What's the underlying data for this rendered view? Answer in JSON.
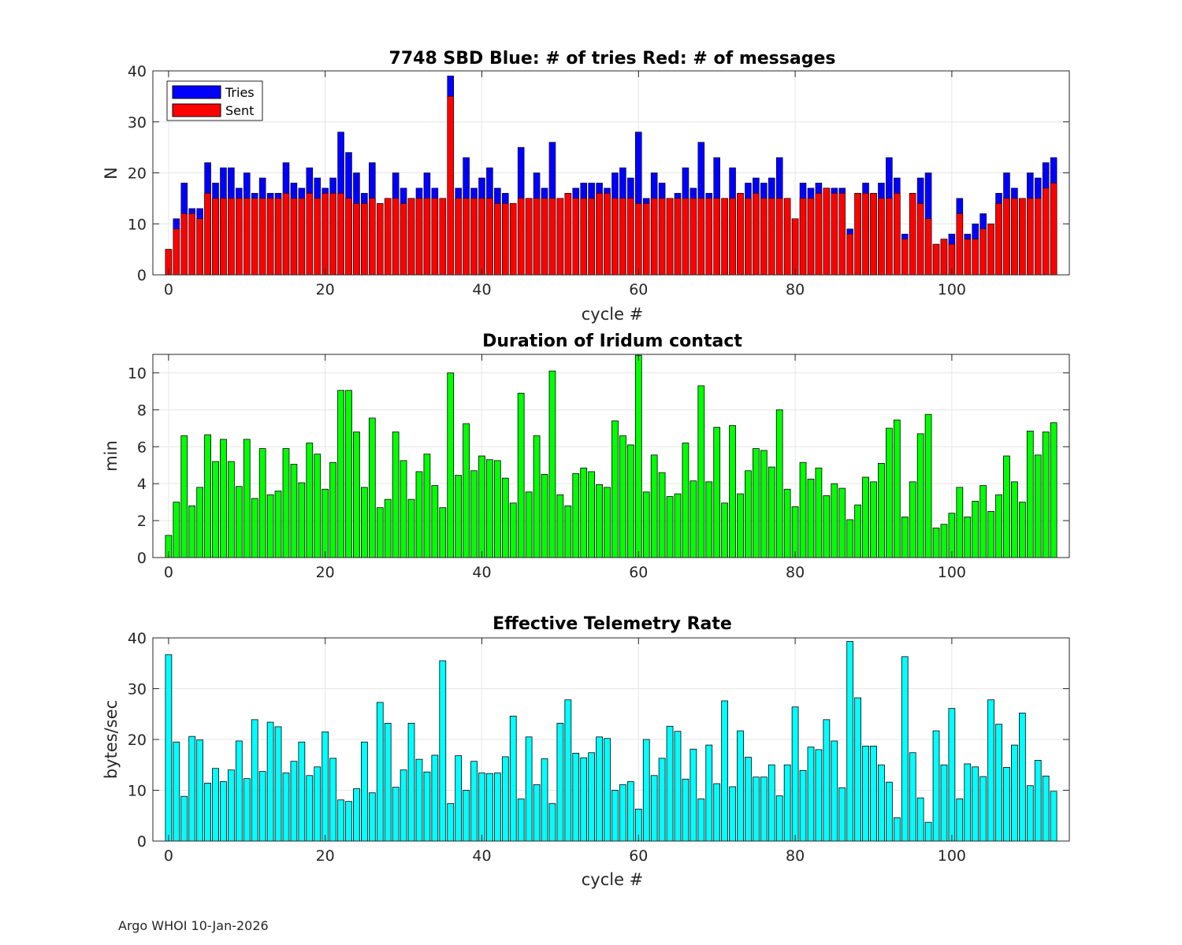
{
  "footer": "Argo WHOI 10-Jan-2026",
  "chart_data": [
    {
      "id": "tries",
      "type": "bar",
      "title": "7748 SBD  Blue: # of tries   Red: # of messages",
      "xlabel": "cycle #",
      "ylabel": "N",
      "xlim": [
        -2,
        115
      ],
      "ylim": [
        0,
        40
      ],
      "xticks": [
        0,
        20,
        40,
        60,
        80,
        100
      ],
      "yticks": [
        0,
        10,
        20,
        30,
        40
      ],
      "grid": true,
      "legend": {
        "position": "top-left",
        "entries": [
          "Tries",
          "Sent"
        ]
      },
      "colors": {
        "Tries": "#0000ff",
        "Sent": "#ff0000"
      },
      "x_start": 0,
      "series": [
        {
          "name": "Tries",
          "values": [
            5,
            11,
            18,
            13,
            13,
            22,
            18,
            21,
            21,
            17,
            20,
            16,
            19,
            16,
            16,
            22,
            18,
            17,
            21,
            19,
            17,
            19,
            28,
            24,
            20,
            16,
            22,
            14,
            15,
            20,
            17,
            15,
            17,
            20,
            17,
            15,
            39,
            17,
            23,
            17,
            19,
            21,
            17,
            16,
            14,
            25,
            15,
            20,
            17,
            26,
            15,
            16,
            17,
            18,
            18,
            18,
            17,
            20,
            21,
            19,
            28,
            15,
            20,
            18,
            15,
            16,
            21,
            17,
            26,
            16,
            23,
            15,
            21,
            16,
            18,
            19,
            18,
            19,
            23,
            15,
            11,
            18,
            17,
            18,
            17,
            17,
            17,
            9,
            16,
            18,
            16,
            18,
            23,
            19,
            8,
            16,
            19,
            20,
            6,
            7,
            8,
            15,
            8,
            10,
            12,
            10,
            16,
            20,
            17,
            15,
            20,
            19,
            22,
            23
          ]
        },
        {
          "name": "Sent",
          "values": [
            5,
            9,
            12,
            12,
            11,
            16,
            15,
            15,
            15,
            15,
            15,
            15,
            15,
            15,
            15,
            16,
            15,
            15,
            16,
            15,
            16,
            16,
            16,
            15,
            14,
            14,
            15,
            14,
            15,
            15,
            14,
            15,
            15,
            15,
            15,
            15,
            35,
            15,
            15,
            15,
            15,
            15,
            14,
            14,
            14,
            15,
            15,
            15,
            15,
            15,
            15,
            16,
            15,
            15,
            15,
            16,
            16,
            15,
            15,
            15,
            14,
            14,
            15,
            15,
            15,
            15,
            15,
            15,
            15,
            15,
            15,
            15,
            15,
            16,
            15,
            16,
            15,
            15,
            15,
            15,
            11,
            15,
            15,
            16,
            17,
            16,
            16,
            8,
            16,
            16,
            16,
            15,
            15,
            16,
            7,
            16,
            14,
            11,
            6,
            7,
            6,
            12,
            7,
            7,
            9,
            10,
            14,
            15,
            15,
            15,
            15,
            15,
            17,
            18
          ]
        }
      ]
    },
    {
      "id": "duration",
      "type": "bar",
      "title": "Duration of Iridum contact",
      "xlabel": "",
      "ylabel": "min",
      "xlim": [
        -2,
        115
      ],
      "ylim": [
        0,
        11
      ],
      "xticks": [
        0,
        20,
        40,
        60,
        80,
        100
      ],
      "yticks": [
        0,
        2,
        4,
        6,
        8,
        10
      ],
      "grid": true,
      "colors": {
        "bar": "#00ff00"
      },
      "x_start": 0,
      "series": [
        {
          "name": "min",
          "values": [
            1.2,
            3.0,
            6.6,
            2.8,
            3.8,
            6.65,
            5.2,
            6.4,
            5.2,
            3.85,
            6.4,
            3.2,
            5.9,
            3.4,
            3.6,
            5.9,
            5.05,
            4.05,
            6.2,
            5.6,
            3.7,
            5.15,
            9.05,
            9.05,
            6.8,
            3.8,
            7.55,
            2.7,
            3.15,
            6.8,
            5.25,
            3.15,
            4.65,
            5.6,
            3.9,
            2.7,
            10.0,
            4.45,
            7.25,
            4.7,
            5.5,
            5.3,
            5.25,
            4.3,
            2.95,
            8.9,
            3.55,
            6.6,
            4.5,
            10.1,
            3.4,
            2.8,
            4.55,
            4.85,
            4.65,
            3.95,
            3.8,
            7.4,
            6.6,
            6.1,
            10.95,
            3.55,
            5.55,
            4.6,
            3.3,
            3.45,
            6.2,
            4.15,
            9.3,
            4.1,
            7.05,
            2.95,
            7.15,
            3.45,
            4.7,
            5.9,
            5.8,
            4.9,
            8.0,
            3.7,
            2.75,
            5.15,
            4.25,
            4.85,
            3.35,
            4.0,
            3.75,
            2.05,
            2.85,
            4.35,
            4.1,
            5.1,
            7.0,
            7.45,
            2.2,
            4.1,
            6.7,
            7.75,
            1.6,
            1.8,
            2.4,
            3.8,
            2.2,
            3.05,
            3.9,
            2.5,
            3.4,
            5.5,
            4.1,
            3.0,
            6.85,
            5.55,
            6.8,
            7.3
          ]
        }
      ]
    },
    {
      "id": "rate",
      "type": "bar",
      "title": "Effective Telemetry Rate",
      "xlabel": "cycle #",
      "ylabel": "bytes/sec",
      "xlim": [
        -2,
        115
      ],
      "ylim": [
        0,
        40
      ],
      "xticks": [
        0,
        20,
        40,
        60,
        80,
        100
      ],
      "yticks": [
        0,
        10,
        20,
        30,
        40
      ],
      "grid": true,
      "colors": {
        "bar": "#00ffff"
      },
      "x_start": 0,
      "series": [
        {
          "name": "bytes/sec",
          "values": [
            36.7,
            19.5,
            8.8,
            20.6,
            19.9,
            11.4,
            14.3,
            11.7,
            14.0,
            19.7,
            12.3,
            23.9,
            13.7,
            23.4,
            22.5,
            13.4,
            15.7,
            19.5,
            12.9,
            14.6,
            21.5,
            16.3,
            8.1,
            7.8,
            10.3,
            19.5,
            9.5,
            27.3,
            23.2,
            10.6,
            14.0,
            23.2,
            16.1,
            13.6,
            16.9,
            35.5,
            7.4,
            16.8,
            10.0,
            15.7,
            13.4,
            13.3,
            13.4,
            16.6,
            24.6,
            8.3,
            20.5,
            11.1,
            16.2,
            7.4,
            23.2,
            27.8,
            17.3,
            16.4,
            17.4,
            20.5,
            20.2,
            10.0,
            11.1,
            11.7,
            6.3,
            20.0,
            12.9,
            16.3,
            22.6,
            21.6,
            12.2,
            18.1,
            8.3,
            18.9,
            11.3,
            27.6,
            10.7,
            21.7,
            16.5,
            12.6,
            12.6,
            15.0,
            8.9,
            15.0,
            26.4,
            13.9,
            18.5,
            18.0,
            23.9,
            19.7,
            10.5,
            39.3,
            28.2,
            18.7,
            18.7,
            15.0,
            11.6,
            4.6,
            36.3,
            17.4,
            8.5,
            3.7,
            21.7,
            15.0,
            26.1,
            8.3,
            15.2,
            14.6,
            12.7,
            27.8,
            23.0,
            14.5,
            18.9,
            25.2,
            10.9,
            15.9,
            12.8,
            9.8
          ]
        }
      ]
    }
  ]
}
